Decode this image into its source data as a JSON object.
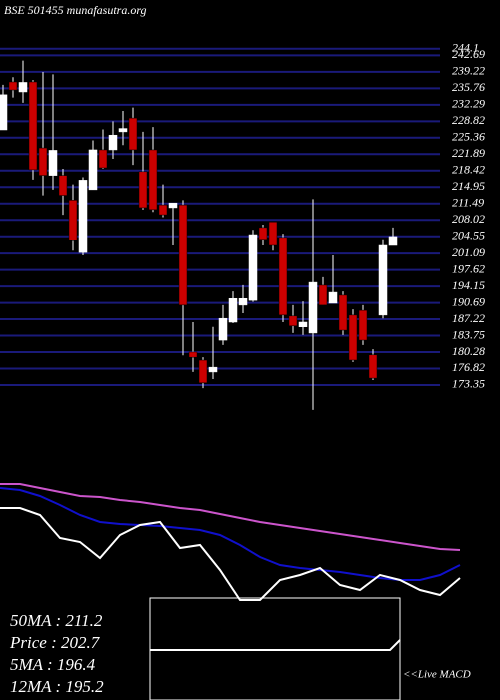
{
  "chart_data": [
    {
      "type": "candlestick",
      "title": "BSE 501455 munafasutra.org",
      "ylim": [
        170.19,
        254.35
      ],
      "yticks": [
        173.35,
        176.82,
        180.28,
        183.75,
        187.22,
        190.69,
        194.15,
        197.62,
        201.09,
        204.55,
        208.02,
        211.49,
        214.95,
        218.42,
        221.89,
        225.36,
        228.82,
        232.29,
        235.76,
        239.22,
        242.69,
        244.1
      ],
      "grid": true,
      "up_color": "#ffffff",
      "down_color": "#cc0000",
      "grid_color": "#1a1a7a",
      "open": [
        227.0,
        237.1,
        235.0,
        237.1,
        223.2,
        217.4,
        217.4,
        212.2,
        201.3,
        214.4,
        222.8,
        222.8,
        226.6,
        229.5,
        218.2,
        222.8,
        211.2,
        210.6,
        211.2,
        180.3,
        178.6,
        176.1,
        182.8,
        186.6,
        190.2,
        191.2,
        206.4,
        207.6,
        204.3,
        187.9,
        185.6,
        184.3,
        194.4,
        190.6,
        192.3,
        188.1,
        189.1,
        179.7,
        188.1,
        202.8
      ],
      "high": [
        236.5,
        238.1,
        241.6,
        237.5,
        239.2,
        238.7,
        218.8,
        215.5,
        217.0,
        224.8,
        227.1,
        228.8,
        231.0,
        231.7,
        226.6,
        227.6,
        215.5,
        211.2,
        212.2,
        186.6,
        179.2,
        185.6,
        190.2,
        193.1,
        194.4,
        205.9,
        207.0,
        207.4,
        205.1,
        190.2,
        191.0,
        212.4,
        196.1,
        200.7,
        193.1,
        189.3,
        190.2,
        180.9,
        203.9,
        206.4
      ],
      "low": [
        227.0,
        233.8,
        232.7,
        216.5,
        213.2,
        214.4,
        209.1,
        201.7,
        200.7,
        214.4,
        218.8,
        220.9,
        223.8,
        219.6,
        210.2,
        209.7,
        208.6,
        202.8,
        179.6,
        176.1,
        172.7,
        174.6,
        181.8,
        186.4,
        188.5,
        190.9,
        202.8,
        201.7,
        186.6,
        184.3,
        183.9,
        168.1,
        190.2,
        190.9,
        183.9,
        178.2,
        181.8,
        174.4,
        187.4,
        202.8
      ],
      "close": [
        234.4,
        235.4,
        237.0,
        218.6,
        217.4,
        222.7,
        213.2,
        203.8,
        216.4,
        222.8,
        219.0,
        225.9,
        227.3,
        222.8,
        210.6,
        210.2,
        209.1,
        211.6,
        190.2,
        179.2,
        173.8,
        177.1,
        187.4,
        191.6,
        191.6,
        204.9,
        203.9,
        202.8,
        188.1,
        185.8,
        186.6,
        195.0,
        190.2,
        192.9,
        184.9,
        178.6,
        182.8,
        174.8,
        202.8,
        204.5
      ]
    },
    {
      "type": "line",
      "ylim": [
        0,
        120
      ],
      "series": [
        {
          "color": "#cc55cc",
          "values": [
            116,
            116,
            112,
            108,
            104,
            103,
            100,
            98,
            95,
            92,
            90,
            86,
            82,
            78,
            75,
            72,
            69,
            66,
            63,
            60,
            57,
            54,
            51,
            50
          ]
        },
        {
          "color": "#1010cc",
          "values": [
            112,
            110,
            104,
            95,
            85,
            78,
            76,
            75,
            74,
            72,
            70,
            65,
            55,
            43,
            35,
            32,
            30,
            28,
            25,
            22,
            20,
            20,
            25,
            35
          ]
        },
        {
          "color": "#ffffff",
          "values": [
            92,
            92,
            85,
            62,
            58,
            42,
            65,
            75,
            78,
            52,
            55,
            30,
            0,
            0,
            20,
            25,
            32,
            15,
            10,
            25,
            20,
            10,
            5,
            22
          ]
        }
      ]
    },
    {
      "type": "macd",
      "label": "<<Live MACD",
      "stats": [
        "50MA : 211.2",
        "Price : 202.7",
        "5MA : 196.4",
        "12MA : 195.2"
      ]
    }
  ]
}
